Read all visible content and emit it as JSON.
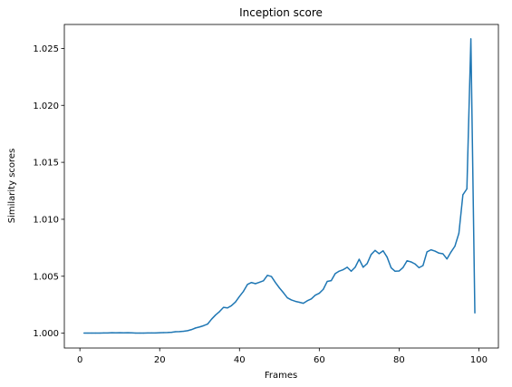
{
  "chart_data": {
    "type": "line",
    "title": "Inception score",
    "xlabel": "Frames",
    "ylabel": "Similarity scores",
    "xlim": [
      -3.9,
      104.9
    ],
    "ylim": [
      0.9987,
      1.0271
    ],
    "xticks": [
      0,
      20,
      40,
      60,
      80,
      100
    ],
    "yticks": [
      1.0,
      1.005,
      1.01,
      1.015,
      1.02,
      1.025
    ],
    "ytick_labels": [
      "1.000",
      "1.005",
      "1.010",
      "1.015",
      "1.020",
      "1.025"
    ],
    "grid": false,
    "line_color": "#1f77b4",
    "series": [
      {
        "x": [
          1,
          2,
          3,
          4,
          5,
          6,
          7,
          8,
          9,
          10,
          11,
          12,
          13,
          14,
          15,
          16,
          17,
          18,
          19,
          20,
          21,
          22,
          23,
          24,
          25,
          26,
          27,
          28,
          29,
          30,
          31,
          32,
          33,
          34,
          35,
          36,
          37,
          38,
          39,
          40,
          41,
          42,
          43,
          44,
          45,
          46,
          47,
          48,
          49,
          50,
          51,
          52,
          53,
          54,
          55,
          56,
          57,
          58,
          59,
          60,
          61,
          62,
          63,
          64,
          65,
          66,
          67,
          68,
          69,
          70,
          71,
          72,
          73,
          74,
          75,
          76,
          77,
          78,
          79,
          80,
          81,
          82,
          83,
          84,
          85,
          86,
          87,
          88,
          89,
          90,
          91,
          92,
          93,
          94,
          95,
          96,
          97,
          98,
          99
        ],
        "values": [
          1.00001,
          1.00001,
          1.00001,
          1.00001,
          1.00001,
          1.00002,
          1.00002,
          1.00004,
          1.00003,
          1.00004,
          1.00003,
          1.00004,
          1.00003,
          1.00001,
          1.00001,
          1.00001,
          1.00002,
          1.00002,
          1.00002,
          1.00004,
          1.00005,
          1.00006,
          1.00008,
          1.00013,
          1.00014,
          1.00017,
          1.00022,
          1.00032,
          1.00046,
          1.00055,
          1.00066,
          1.0008,
          1.00123,
          1.0016,
          1.0019,
          1.00227,
          1.00222,
          1.00242,
          1.00274,
          1.00323,
          1.00368,
          1.00428,
          1.00445,
          1.00435,
          1.00447,
          1.0046,
          1.00508,
          1.00498,
          1.00445,
          1.00398,
          1.00356,
          1.00311,
          1.00292,
          1.0028,
          1.00272,
          1.00263,
          1.00285,
          1.00301,
          1.00334,
          1.00351,
          1.00385,
          1.00455,
          1.00462,
          1.00523,
          1.00545,
          1.00558,
          1.00579,
          1.00544,
          1.00579,
          1.00649,
          1.00579,
          1.00611,
          1.00691,
          1.00727,
          1.00698,
          1.00723,
          1.00668,
          1.00575,
          1.00544,
          1.00546,
          1.00577,
          1.00636,
          1.00626,
          1.00608,
          1.00575,
          1.00594,
          1.00714,
          1.00732,
          1.00721,
          1.00703,
          1.00697,
          1.00652,
          1.00712,
          1.00764,
          1.00878,
          1.01215,
          1.01267,
          1.02584,
          1.00177
        ]
      }
    ]
  }
}
